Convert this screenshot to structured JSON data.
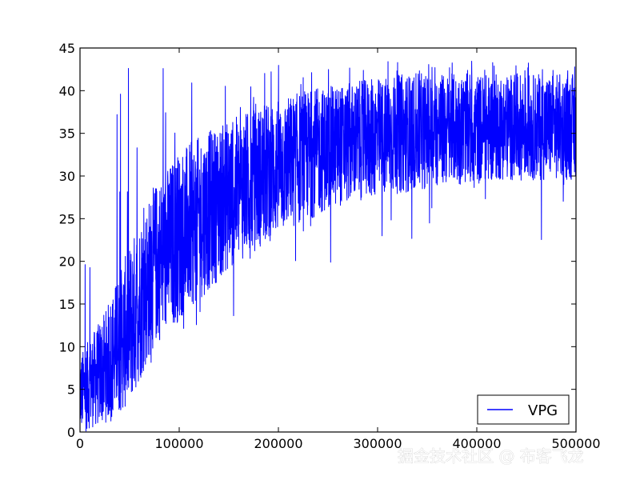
{
  "chart_data": {
    "type": "line",
    "title": "",
    "xlabel": "",
    "ylabel": "",
    "xlim": [
      0,
      500000
    ],
    "ylim": [
      0,
      45
    ],
    "x_ticks": [
      0,
      100000,
      200000,
      300000,
      400000,
      500000
    ],
    "y_ticks": [
      0,
      5,
      10,
      15,
      20,
      25,
      30,
      35,
      40,
      45
    ],
    "grid": false,
    "legend_position": "lower-right",
    "series": [
      {
        "name": "VPG",
        "color": "#0000ff",
        "style": "noisy episode rewards",
        "x": [
          0,
          25000,
          50000,
          75000,
          100000,
          125000,
          150000,
          175000,
          200000,
          225000,
          250000,
          275000,
          300000,
          325000,
          350000,
          375000,
          400000,
          425000,
          450000,
          475000,
          500000
        ],
        "y_mean": [
          3,
          8,
          14,
          20,
          23,
          25.5,
          28,
          29.5,
          31,
          32,
          33,
          33.5,
          34,
          34.5,
          35,
          35.3,
          35.5,
          35.7,
          35.8,
          35.9,
          36
        ],
        "y_upper": [
          9,
          14,
          22,
          29,
          33,
          35,
          36.5,
          38,
          39,
          40,
          40.5,
          41,
          41.5,
          42,
          42,
          42,
          42,
          42,
          42,
          42,
          42
        ],
        "y_lower": [
          0,
          1,
          3,
          10,
          13,
          16,
          19,
          21,
          23,
          24.5,
          26,
          27,
          27.5,
          28,
          28.5,
          29,
          29,
          29.5,
          29.5,
          29.5,
          29.5
        ],
        "y_spike_max": 43.5,
        "y_spike_min": 16.7
      }
    ]
  },
  "watermark": "掘金技术社区 @ 布客飞龙"
}
